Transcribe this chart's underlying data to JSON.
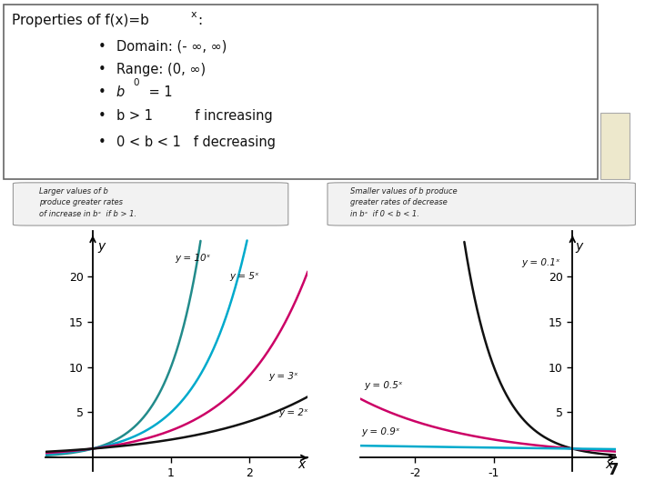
{
  "title_plain": "Properties of f(x)=b",
  "title_super": "x",
  "bullets": [
    "Domain: (- ∞, ∞)",
    "Range: (0, ∞)",
    "b0_special",
    "b > 1          f increasing",
    "0 < b < 1   f decreasing"
  ],
  "box1_text": "Larger values of b\nproduce greater rates\nof increase in bˣ  if b > 1.",
  "box2_text": "Smaller values of b produce\ngreater rates of decrease\nin bˣ  if 0 < b < 1.",
  "left_curves": [
    {
      "base": 10,
      "label": "y = 10ˣ",
      "color": "#228B8B",
      "lw": 1.8
    },
    {
      "base": 5,
      "label": "y = 5ˣ",
      "color": "#00AACC",
      "lw": 1.8
    },
    {
      "base": 3,
      "label": "y = 3ˣ",
      "color": "#CC0066",
      "lw": 1.8
    },
    {
      "base": 2,
      "label": "y = 2ˣ",
      "color": "#111111",
      "lw": 1.8
    }
  ],
  "right_curves": [
    {
      "base": 0.1,
      "label": "y = 0.1ˣ",
      "color": "#111111",
      "lw": 1.8
    },
    {
      "base": 0.5,
      "label": "y = 0.5ˣ",
      "color": "#CC0066",
      "lw": 1.8
    },
    {
      "base": 0.9,
      "label": "y = 0.9ˣ",
      "color": "#00AACC",
      "lw": 1.8
    }
  ],
  "page_number": "7",
  "bg_color": "#FFFFFF",
  "right_tab_color": "#EDE8CC"
}
